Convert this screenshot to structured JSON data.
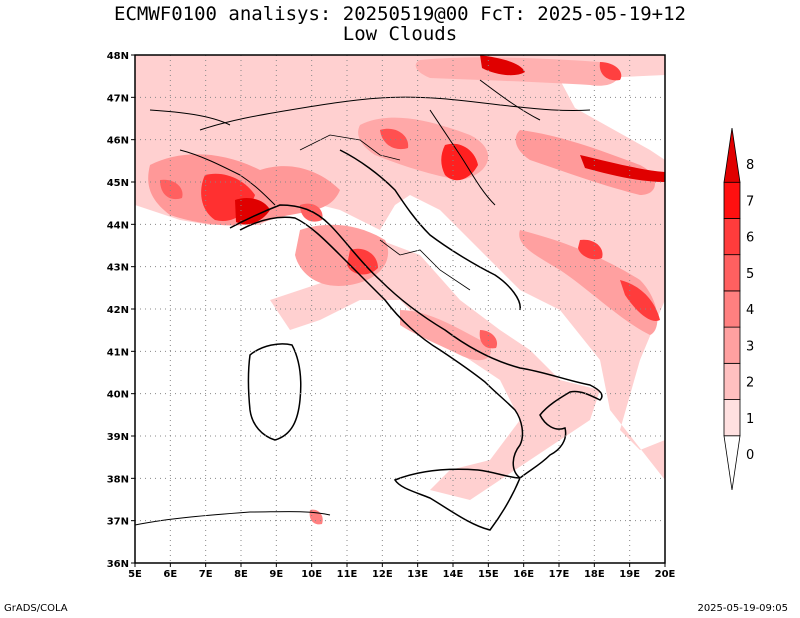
{
  "header": {
    "title_line1": "ECMWF0100 analisys: 20250519@00 FcT: 2025-05-19+12",
    "title_line2": "Low Clouds"
  },
  "map": {
    "lon_range": [
      5,
      20
    ],
    "lat_range": [
      36,
      48
    ],
    "lon_ticks": [
      "5E",
      "6E",
      "7E",
      "8E",
      "9E",
      "10E",
      "11E",
      "12E",
      "13E",
      "14E",
      "15E",
      "16E",
      "17E",
      "18E",
      "19E",
      "20E"
    ],
    "lat_ticks": [
      "36N",
      "37N",
      "38N",
      "39N",
      "40N",
      "41N",
      "42N",
      "43N",
      "44N",
      "45N",
      "46N",
      "47N",
      "48N"
    ],
    "grid": true,
    "grid_style": "dotted"
  },
  "colorbar": {
    "levels": [
      "0",
      "1",
      "2",
      "3",
      "4",
      "5",
      "6",
      "7",
      "8"
    ],
    "colors": [
      "#ffffff",
      "#ffe0e0",
      "#ffc0c0",
      "#ffa0a0",
      "#ff8080",
      "#ff6060",
      "#ff3c3c",
      "#ff1010",
      "#e00000"
    ]
  },
  "footer": {
    "left": "GrADS/COLA",
    "right": "2025-05-19-09:05"
  }
}
